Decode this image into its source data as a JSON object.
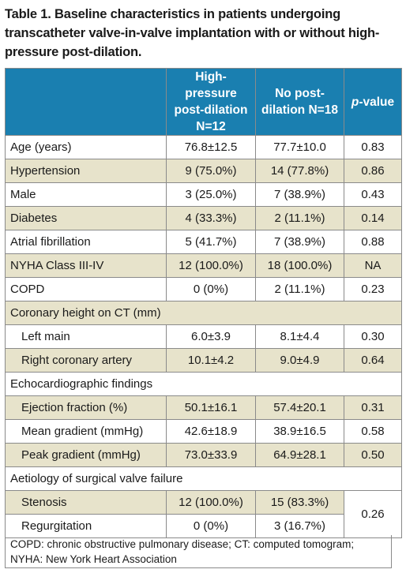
{
  "caption": "Table 1. Baseline characteristics in patients undergoing transcatheter valve-in-valve implantation with or without high-pressure post-dilation.",
  "header": {
    "col1": "",
    "col2": "High-pressure post-dilation N=12",
    "col3": "No post-dilation N=18",
    "col4_italic": "p",
    "col4_rest": "-value"
  },
  "rows": [
    {
      "label": "Age (years)",
      "a": "76.8±12.5",
      "b": "77.7±10.0",
      "p": "0.83"
    },
    {
      "label": "Hypertension",
      "a": "9 (75.0%)",
      "b": "14 (77.8%)",
      "p": "0.86"
    },
    {
      "label": "Male",
      "a": "3 (25.0%)",
      "b": "7 (38.9%)",
      "p": "0.43"
    },
    {
      "label": "Diabetes",
      "a": "4 (33.3%)",
      "b": "2 (11.1%)",
      "p": "0.14"
    },
    {
      "label": "Atrial fibrillation",
      "a": "5 (41.7%)",
      "b": "7 (38.9%)",
      "p": "0.88"
    },
    {
      "label": "NYHA Class III-IV",
      "a": "12 (100.0%)",
      "b": "18 (100.0%)",
      "p": "NA"
    },
    {
      "label": "COPD",
      "a": "0 (0%)",
      "b": "2 (11.1%)",
      "p": "0.23"
    }
  ],
  "section_coronary": {
    "title": "Coronary height on CT (mm)",
    "rows": [
      {
        "label": "Left main",
        "a": "6.0±3.9",
        "b": "8.1±4.4",
        "p": "0.30"
      },
      {
        "label": "Right coronary artery",
        "a": "10.1±4.2",
        "b": "9.0±4.9",
        "p": "0.64"
      }
    ]
  },
  "section_echo": {
    "title": "Echocardiographic findings",
    "rows": [
      {
        "label": "Ejection fraction (%)",
        "a": "50.1±16.1",
        "b": "57.4±20.1",
        "p": "0.31"
      },
      {
        "label": "Mean gradient (mmHg)",
        "a": "42.6±18.9",
        "b": "38.9±16.5",
        "p": "0.58"
      },
      {
        "label": "Peak gradient (mmHg)",
        "a": "73.0±33.9",
        "b": "64.9±28.1",
        "p": "0.50"
      }
    ]
  },
  "section_aetiology": {
    "title": "Aetiology of surgical valve failure",
    "rows": [
      {
        "label": "Stenosis",
        "a": "12 (100.0%)",
        "b": "15 (83.3%)"
      },
      {
        "label": "Regurgitation",
        "a": "0 (0%)",
        "b": "3 (16.7%)"
      }
    ],
    "p": "0.26"
  },
  "footnote": "COPD: chronic obstructive pulmonary disease; CT: computed tomogram; NYHA: New York Heart Association"
}
